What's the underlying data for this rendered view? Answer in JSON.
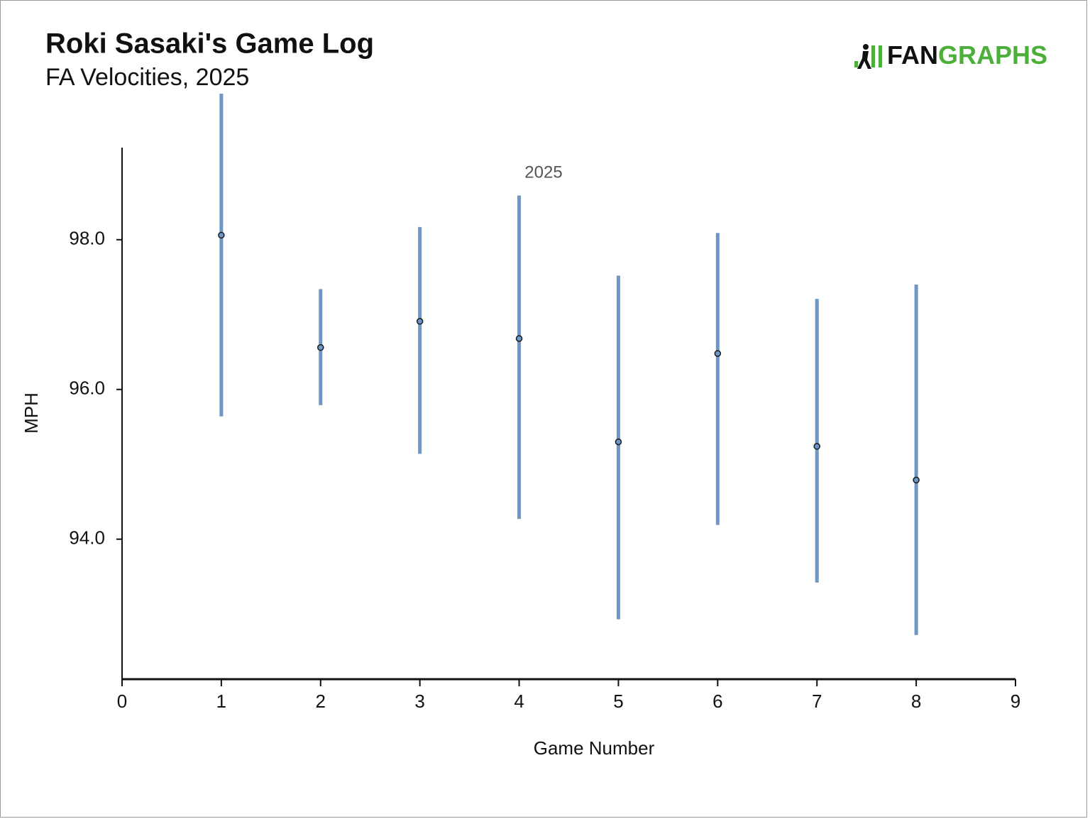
{
  "brand_parts": [
    "FAN",
    "GRAPHS"
  ],
  "chart_data": {
    "type": "scatter",
    "title": "Roki Sasaki's Game Log",
    "subtitle": "FA Velocities, 2025",
    "x_label": "Game Number",
    "y_label": "MPH",
    "annotation": "2025",
    "series": [
      {
        "name": "2025",
        "color": "#6b98c7",
        "x": [
          1,
          2,
          3,
          4,
          5,
          6,
          7,
          8
        ],
        "values": [
          98.06,
          96.56,
          96.91,
          96.68,
          95.3,
          96.48,
          95.24,
          94.79
        ],
        "low": [
          95.64,
          95.79,
          95.14,
          94.27,
          92.93,
          94.19,
          93.42,
          92.72
        ],
        "high": [
          99.95,
          97.34,
          98.17,
          98.59,
          97.52,
          98.09,
          97.21,
          97.4
        ]
      }
    ],
    "xlim": [
      0,
      9
    ],
    "xticks": [
      0,
      1,
      2,
      3,
      4,
      5,
      6,
      7,
      8,
      9
    ],
    "ylim": [
      92.13,
      99.23
    ],
    "yticks": [
      {
        "value": 94,
        "label": "94.0"
      },
      {
        "value": 96,
        "label": "96.0"
      },
      {
        "value": 98,
        "label": "98.0"
      }
    ],
    "grid": false
  }
}
